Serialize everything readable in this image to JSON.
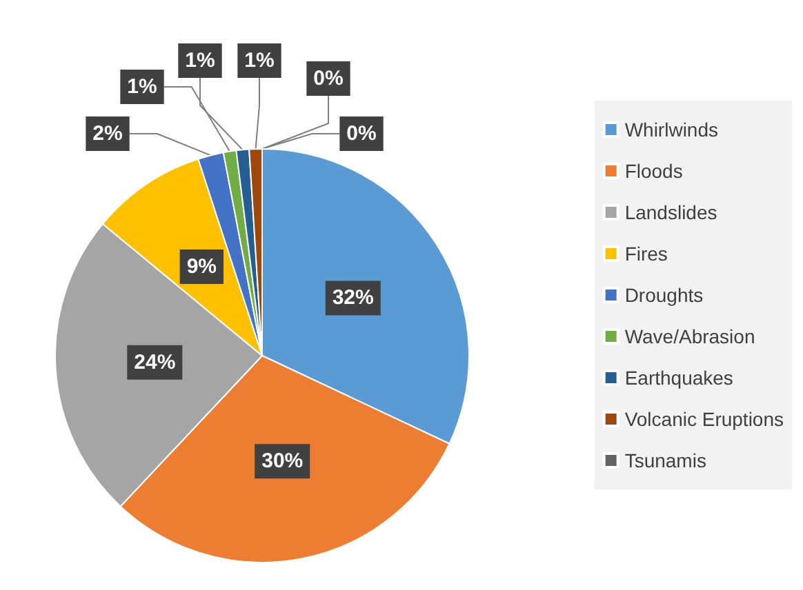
{
  "chart_data": {
    "type": "pie",
    "categories": [
      "Whirlwinds",
      "Floods",
      "Landslides",
      "Fires",
      "Droughts",
      "Wave/Abrasion",
      "Earthquakes",
      "Volcanic Eruptions",
      "Tsunamis",
      null
    ],
    "values": [
      32,
      30,
      24,
      9,
      2,
      1,
      1,
      1,
      0,
      0
    ],
    "colors": [
      "#5b9bd5",
      "#ed7d31",
      "#a5a5a5",
      "#ffc000",
      "#4472c4",
      "#70ad47",
      "#255e91",
      "#9e480e",
      "#636363",
      "#264478"
    ],
    "value_labels": [
      "32%",
      "30%",
      "24%",
      "9%",
      "2%",
      "1%",
      "1%",
      "1%",
      "0%",
      "0%"
    ],
    "legend": "right"
  }
}
